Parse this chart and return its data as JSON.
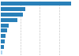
{
  "values": [
    1820,
    640,
    580,
    420,
    195,
    160,
    125,
    105,
    85,
    40
  ],
  "bar_color": "#2980b9",
  "last_bar_color": "#aed6f1",
  "background_color": "#ffffff",
  "grid_color": "#c8c8c8",
  "xlim": [
    0,
    2000
  ],
  "figsize": [
    1.0,
    0.71
  ],
  "dpi": 100
}
